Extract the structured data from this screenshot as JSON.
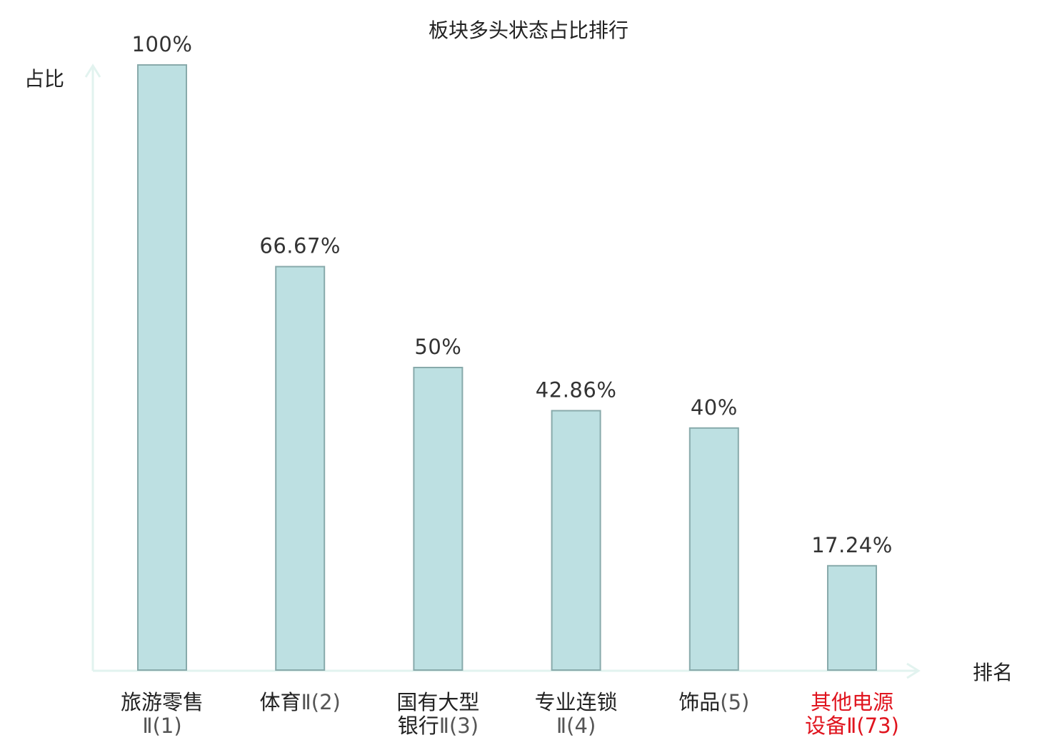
{
  "chart_data": {
    "type": "bar",
    "title": "板块多头状态占比排行",
    "xlabel": "排名",
    "ylabel": "占比",
    "ylim": [
      0,
      100
    ],
    "grid": false,
    "legend": "none",
    "categories": [
      {
        "name_lines": [
          "旅游零售"
        ],
        "rank_text": "Ⅱ(1)",
        "highlight": false
      },
      {
        "name_lines": [
          "体育"
        ],
        "rank_text": "Ⅱ(2)",
        "highlight": false
      },
      {
        "name_lines": [
          "国有大型",
          "银行"
        ],
        "rank_text": "Ⅱ(3)",
        "highlight": false
      },
      {
        "name_lines": [
          "专业连锁"
        ],
        "rank_text": "Ⅱ(4)",
        "highlight": false
      },
      {
        "name_lines": [
          "饰品"
        ],
        "rank_text": "(5)",
        "highlight": false
      },
      {
        "name_lines": [
          "其他电源",
          "设备"
        ],
        "rank_text": "Ⅱ(73)",
        "highlight": true
      }
    ],
    "values": [
      100,
      66.67,
      50,
      42.86,
      40,
      17.24
    ],
    "value_labels": [
      "100%",
      "66.67%",
      "50%",
      "42.86%",
      "40%",
      "17.24%"
    ]
  },
  "colors": {
    "bar_fill": "#bde0e2",
    "bar_stroke": "#88aaab",
    "axis": "#e2f3ef",
    "text": "#222222",
    "value_text": "#333333",
    "rank_text": "#555555",
    "highlight": "#e0141e"
  }
}
